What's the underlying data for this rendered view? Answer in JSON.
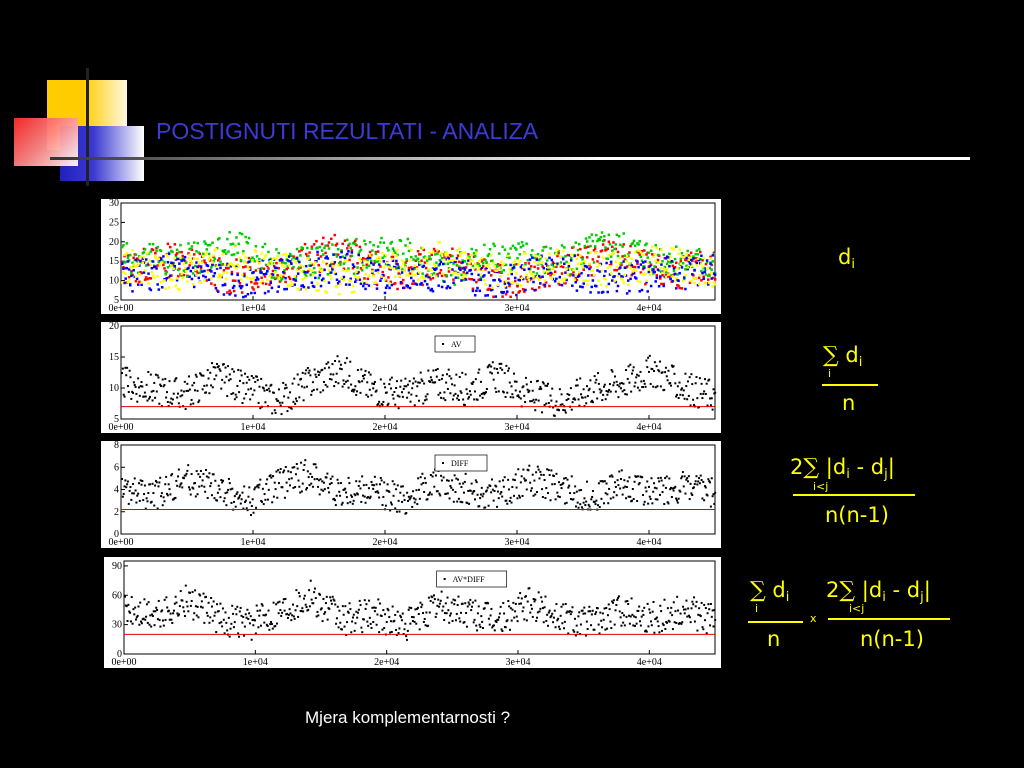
{
  "slide": {
    "title": "POSTIGNUTI REZULTATI - ANALIZA",
    "caption": "Mjera komplementarnosti ?"
  },
  "colors": {
    "background": "#000000",
    "title": "#3b3bd6",
    "formula": "#ffff00",
    "reference_line": "#e00000"
  },
  "formulas": {
    "f1": {
      "d": "d",
      "i": "i"
    },
    "f2": {
      "sigma": "∑",
      "under": "i",
      "d": "d",
      "i": "i",
      "den": "n"
    },
    "f3": {
      "two": "2",
      "sigma": "∑",
      "under": "i<j",
      "num_a": "|d",
      "i": "i",
      "minus": " - d",
      "j": "j",
      "close": "|",
      "den": "n(n-1)"
    },
    "f4": {
      "sigma": "∑",
      "under": "i",
      "d": "d",
      "i": "i",
      "den": "n",
      "times": "x",
      "two": "2",
      "sigma2": "∑",
      "under2": "i<j",
      "num_a": "|d",
      "minus": " - d",
      "j": "j",
      "close": "|",
      "den2": "n(n-1)"
    }
  },
  "chart_data": [
    {
      "type": "scatter",
      "x_ticks": [
        "0e+00",
        "1e+04",
        "2e+04",
        "3e+04",
        "4e+04"
      ],
      "y_ticks": [
        "5",
        "10",
        "15",
        "20",
        "25",
        "30"
      ],
      "xlim": [
        0,
        45000
      ],
      "ylim": [
        5,
        30
      ],
      "series": [
        {
          "color": "#ff0000",
          "values": [
            13,
            16,
            11,
            14,
            18,
            12,
            15,
            10,
            13,
            17,
            12,
            14
          ]
        },
        {
          "color": "#00cc00",
          "values": [
            17,
            15,
            19,
            14,
            16,
            18,
            13,
            17,
            15,
            19,
            16,
            14
          ]
        },
        {
          "color": "#0000ff",
          "values": [
            11,
            13,
            10,
            12,
            14,
            11,
            12,
            10,
            13,
            11,
            12,
            13
          ]
        },
        {
          "color": "#ffff00",
          "values": [
            14,
            12,
            15,
            13,
            11,
            14,
            16,
            12,
            14,
            13,
            15,
            12
          ]
        }
      ]
    },
    {
      "type": "scatter",
      "legend": "AV",
      "x_ticks": [
        "0e+00",
        "1e+04",
        "2e+04",
        "3e+04",
        "4e+04"
      ],
      "y_ticks": [
        "5",
        "10",
        "15",
        "20"
      ],
      "xlim": [
        0,
        45000
      ],
      "ylim": [
        5,
        20
      ],
      "reference_y": 7,
      "values": [
        11,
        10,
        9,
        12,
        10,
        8,
        11,
        13,
        10,
        9,
        11,
        10,
        12,
        9,
        8,
        10,
        11,
        13,
        10,
        9
      ]
    },
    {
      "type": "scatter",
      "legend": "DIFF",
      "x_ticks": [
        "0e+00",
        "1e+04",
        "2e+04",
        "3e+04",
        "4e+04"
      ],
      "y_ticks": [
        "0",
        "2",
        "4",
        "6",
        "8"
      ],
      "xlim": [
        0,
        45000
      ],
      "ylim": [
        0,
        8
      ],
      "reference_y": 2.2,
      "values": [
        4,
        3.5,
        5,
        4.2,
        3,
        4.5,
        5.5,
        3.8,
        4,
        3.2,
        4.8,
        4.1,
        3.6,
        5,
        4.3,
        3.4,
        4.6,
        3.9,
        4.4,
        3.7
      ]
    },
    {
      "type": "scatter",
      "legend": "AV*DIFF",
      "x_ticks": [
        "0e+00",
        "1e+04",
        "2e+04",
        "3e+04",
        "4e+04"
      ],
      "y_ticks": [
        "0",
        "30",
        "60",
        "90"
      ],
      "xlim": [
        0,
        45000
      ],
      "ylim": [
        0,
        95
      ],
      "reference_y": 20,
      "values": [
        45,
        40,
        55,
        38,
        30,
        48,
        60,
        35,
        42,
        30,
        50,
        44,
        36,
        52,
        40,
        33,
        47,
        38,
        45,
        36
      ]
    }
  ]
}
